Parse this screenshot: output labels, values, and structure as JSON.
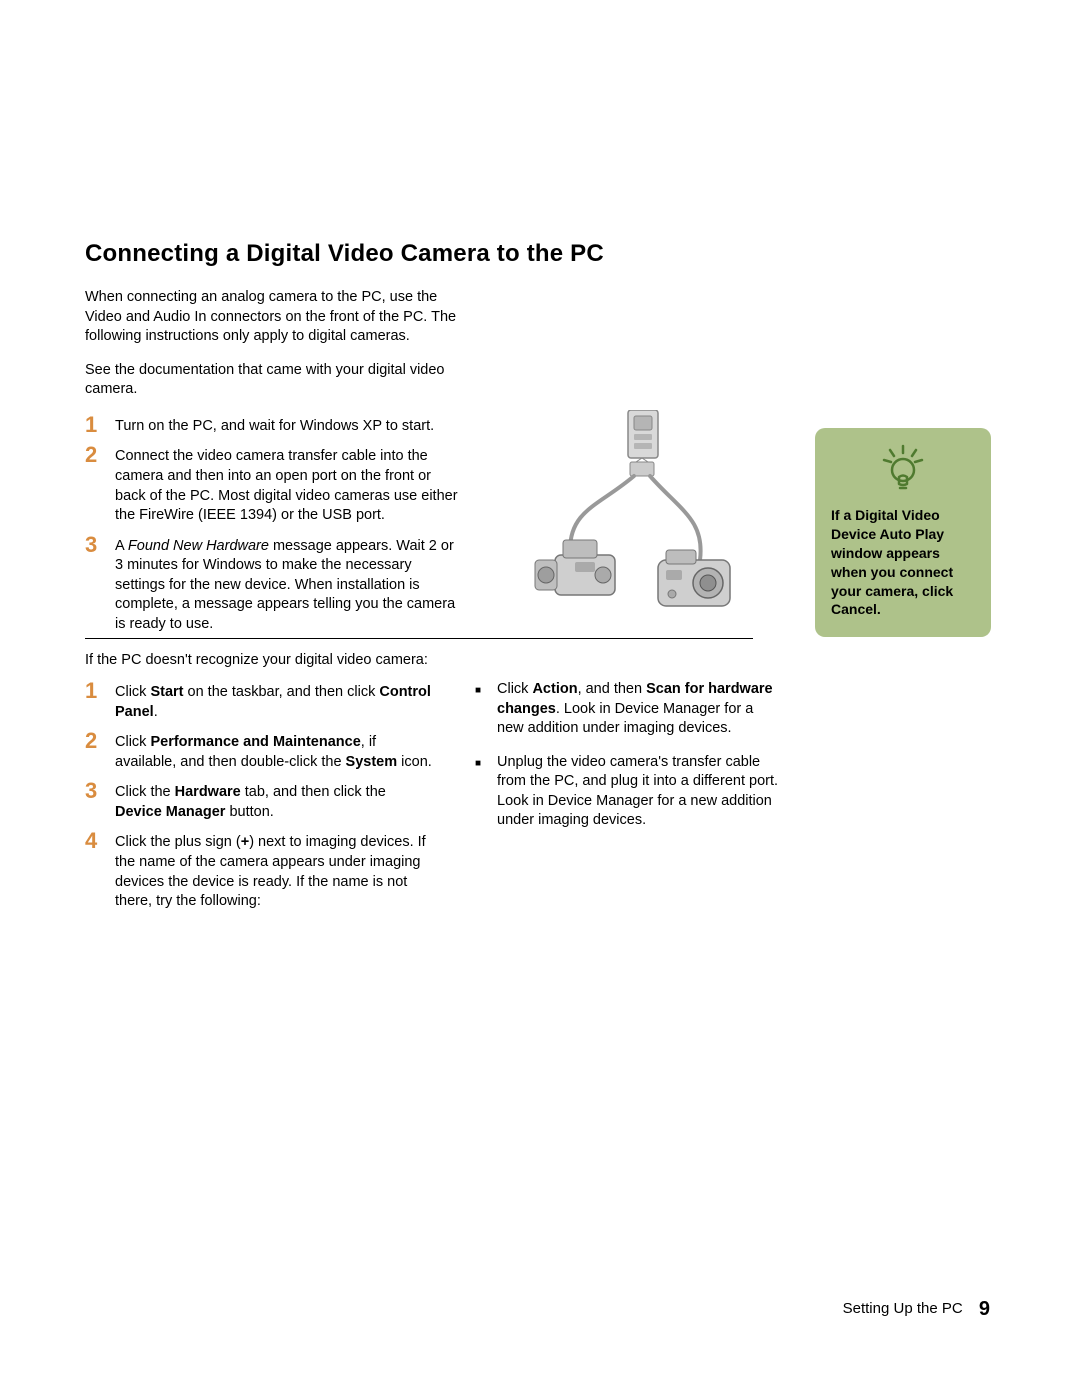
{
  "title": "Connecting a Digital Video Camera to the PC",
  "intro": {
    "p1": "When connecting an analog camera to the PC, use the Video and Audio In connectors on the front of the PC. The following instructions only apply to digital cameras.",
    "p2": "See the documentation that came with your digital video camera."
  },
  "steps1": [
    {
      "num": "1",
      "html": "Turn on the PC, and wait for Windows XP to start."
    },
    {
      "num": "2",
      "html": "Connect the video camera transfer cable into the camera and then into an open port on the front or back of the PC. Most digital video cameras use either the FireWire (IEEE 1394) or the USB port."
    },
    {
      "num": "3",
      "html": "A <span class=\"italic\">Found New Hardware</span> message appears. Wait 2 or 3 minutes for Windows to make the necessary settings for the new device. When installation is complete, a message appears telling you the camera is ready to use."
    }
  ],
  "tip": {
    "text": "If a Digital Video Device Auto Play window appears when you connect your camera, click Cancel.",
    "bg_color": "#aec28a",
    "icon_color": "#4f7a2f"
  },
  "trouble_intro": "If the PC doesn't recognize your digital video camera:",
  "steps2": [
    {
      "num": "1",
      "html": "Click <span class=\"bold\">Start</span> on the taskbar, and then click <span class=\"bold\">Control Panel</span>."
    },
    {
      "num": "2",
      "html": "Click <span class=\"bold\">Performance and Maintenance</span>, if available, and then double-click the <span class=\"bold\">System</span> icon."
    },
    {
      "num": "3",
      "html": "Click the <span class=\"bold\">Hardware</span> tab, and then click the <span class=\"bold\">Device Manager</span> button."
    },
    {
      "num": "4",
      "html": "Click the plus sign (<span class=\"bold\">+</span>) next to imaging devices. If the name of the camera appears under imaging devices the device is ready. If the name is not there, try the following:"
    }
  ],
  "bullets": [
    {
      "html": "Click <span class=\"bold\">Action</span>, and then <span class=\"bold\">Scan for hardware changes</span>. Look in Device Manager for a new addition under imaging devices."
    },
    {
      "html": "Unplug the video camera's transfer cable from the PC, and plug it into a different port. Look in Device Manager for a new addition under imaging devices."
    }
  ],
  "footer": {
    "section": "Setting Up the PC",
    "page": "9"
  },
  "colors": {
    "step_number": "#d98c3f",
    "text": "#000000",
    "background": "#ffffff"
  }
}
